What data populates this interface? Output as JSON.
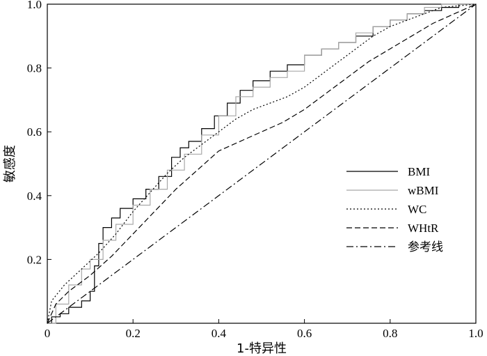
{
  "chart_data": {
    "type": "line",
    "title": "",
    "xlabel": "1-特异性",
    "ylabel": "敏感度",
    "xlim": [
      0,
      1
    ],
    "ylim": [
      0,
      1
    ],
    "x_ticks": [
      "0",
      "0.2",
      "0.4",
      "0.6",
      "0.8",
      "1.0"
    ],
    "y_ticks": [
      "0.2",
      "0.4",
      "0.6",
      "0.8",
      "1.0"
    ],
    "grid": false,
    "legend_position": "center-right",
    "series": [
      {
        "name": "BMI",
        "color": "#000000",
        "dash": "solid",
        "points": [
          [
            0,
            0
          ],
          [
            0.01,
            0.02
          ],
          [
            0.03,
            0.03
          ],
          [
            0.05,
            0.05
          ],
          [
            0.08,
            0.07
          ],
          [
            0.1,
            0.1
          ],
          [
            0.11,
            0.18
          ],
          [
            0.12,
            0.25
          ],
          [
            0.13,
            0.3
          ],
          [
            0.15,
            0.33
          ],
          [
            0.17,
            0.36
          ],
          [
            0.2,
            0.39
          ],
          [
            0.23,
            0.42
          ],
          [
            0.26,
            0.46
          ],
          [
            0.29,
            0.52
          ],
          [
            0.31,
            0.55
          ],
          [
            0.33,
            0.57
          ],
          [
            0.36,
            0.61
          ],
          [
            0.39,
            0.65
          ],
          [
            0.42,
            0.69
          ],
          [
            0.45,
            0.73
          ],
          [
            0.48,
            0.76
          ],
          [
            0.52,
            0.79
          ],
          [
            0.56,
            0.81
          ],
          [
            0.6,
            0.84
          ],
          [
            0.64,
            0.86
          ],
          [
            0.68,
            0.88
          ],
          [
            0.72,
            0.9
          ],
          [
            0.76,
            0.93
          ],
          [
            0.8,
            0.95
          ],
          [
            0.84,
            0.97
          ],
          [
            0.88,
            0.98
          ],
          [
            0.92,
            0.99
          ],
          [
            0.96,
            1.0
          ],
          [
            1.0,
            1.0
          ]
        ]
      },
      {
        "name": "wBMI",
        "color": "#a8a8a8",
        "dash": "solid",
        "points": [
          [
            0,
            0
          ],
          [
            0.02,
            0.06
          ],
          [
            0.05,
            0.12
          ],
          [
            0.08,
            0.17
          ],
          [
            0.1,
            0.2
          ],
          [
            0.13,
            0.26
          ],
          [
            0.16,
            0.31
          ],
          [
            0.2,
            0.37
          ],
          [
            0.24,
            0.42
          ],
          [
            0.28,
            0.48
          ],
          [
            0.32,
            0.53
          ],
          [
            0.36,
            0.59
          ],
          [
            0.4,
            0.65
          ],
          [
            0.44,
            0.71
          ],
          [
            0.48,
            0.74
          ],
          [
            0.52,
            0.77
          ],
          [
            0.56,
            0.79
          ],
          [
            0.6,
            0.84
          ],
          [
            0.64,
            0.86
          ],
          [
            0.68,
            0.88
          ],
          [
            0.72,
            0.91
          ],
          [
            0.76,
            0.93
          ],
          [
            0.8,
            0.95
          ],
          [
            0.84,
            0.97
          ],
          [
            0.88,
            0.99
          ],
          [
            0.92,
            1.0
          ],
          [
            1.0,
            1.0
          ]
        ]
      },
      {
        "name": "WC",
        "color": "#000000",
        "dash": "dotted",
        "points": [
          [
            0,
            0
          ],
          [
            0.01,
            0.07
          ],
          [
            0.04,
            0.12
          ],
          [
            0.08,
            0.17
          ],
          [
            0.12,
            0.22
          ],
          [
            0.16,
            0.28
          ],
          [
            0.2,
            0.35
          ],
          [
            0.24,
            0.41
          ],
          [
            0.28,
            0.47
          ],
          [
            0.32,
            0.52
          ],
          [
            0.36,
            0.56
          ],
          [
            0.4,
            0.6
          ],
          [
            0.44,
            0.64
          ],
          [
            0.48,
            0.67
          ],
          [
            0.52,
            0.69
          ],
          [
            0.56,
            0.71
          ],
          [
            0.6,
            0.74
          ],
          [
            0.64,
            0.78
          ],
          [
            0.68,
            0.82
          ],
          [
            0.72,
            0.86
          ],
          [
            0.76,
            0.9
          ],
          [
            0.8,
            0.93
          ],
          [
            0.84,
            0.95
          ],
          [
            0.88,
            0.97
          ],
          [
            0.92,
            0.99
          ],
          [
            1.0,
            1.0
          ]
        ]
      },
      {
        "name": "WHtR",
        "color": "#000000",
        "dash": "dashed",
        "points": [
          [
            0,
            0
          ],
          [
            0.02,
            0.06
          ],
          [
            0.05,
            0.1
          ],
          [
            0.1,
            0.15
          ],
          [
            0.15,
            0.21
          ],
          [
            0.2,
            0.28
          ],
          [
            0.25,
            0.35
          ],
          [
            0.3,
            0.42
          ],
          [
            0.35,
            0.48
          ],
          [
            0.4,
            0.54
          ],
          [
            0.45,
            0.57
          ],
          [
            0.5,
            0.6
          ],
          [
            0.55,
            0.63
          ],
          [
            0.6,
            0.67
          ],
          [
            0.65,
            0.72
          ],
          [
            0.7,
            0.77
          ],
          [
            0.75,
            0.82
          ],
          [
            0.8,
            0.86
          ],
          [
            0.85,
            0.9
          ],
          [
            0.9,
            0.94
          ],
          [
            0.95,
            0.97
          ],
          [
            1.0,
            1.0
          ]
        ]
      },
      {
        "name": "参考线",
        "color": "#000000",
        "dash": "dashdot",
        "points": [
          [
            0,
            0
          ],
          [
            1,
            1
          ]
        ]
      }
    ]
  }
}
